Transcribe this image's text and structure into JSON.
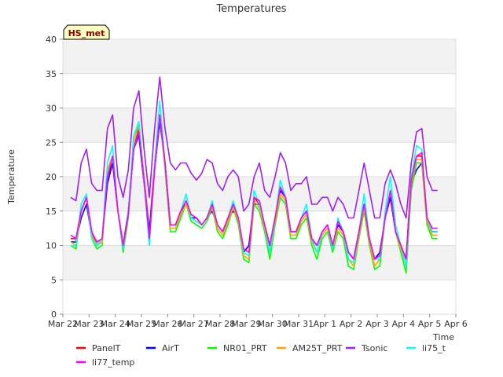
{
  "chart_data": {
    "type": "line",
    "title": "Temperatures",
    "xlabel": "Time",
    "ylabel": "Temperature",
    "badge": "HS_met",
    "ylim": [
      0,
      40
    ],
    "xlim": [
      0,
      15
    ],
    "yticks": [
      0,
      5,
      10,
      15,
      20,
      25,
      30,
      35,
      40
    ],
    "xtick_labels": [
      "Mar 22",
      "Mar 23",
      "Mar 24",
      "Mar 25",
      "Mar 26",
      "Mar 27",
      "Mar 28",
      "Mar 29",
      "Mar 30",
      "Mar 31",
      "Apr 1",
      "Apr 2",
      "Apr 3",
      "Apr 4",
      "Apr 5",
      "Apr 6"
    ],
    "grid": true,
    "legend_position": "bottom",
    "x_units": "days since Mar 22 00:00",
    "series": [
      {
        "name": "PanelT",
        "color": "#ff0000",
        "x": [
          0.3,
          0.5,
          0.7,
          0.9,
          1.1,
          1.3,
          1.5,
          1.7,
          1.9,
          2.1,
          2.3,
          2.5,
          2.7,
          2.9,
          3.1,
          3.3,
          3.5,
          3.7,
          3.9,
          4.1,
          4.3,
          4.5,
          4.7,
          4.9,
          5.1,
          5.3,
          5.5,
          5.7,
          5.9,
          6.1,
          6.3,
          6.5,
          6.7,
          6.9,
          7.1,
          7.3,
          7.5,
          7.7,
          7.9,
          8.1,
          8.3,
          8.5,
          8.7,
          8.9,
          9.1,
          9.3,
          9.5,
          9.7,
          9.9,
          10.1,
          10.3,
          10.5,
          10.7,
          10.9,
          11.1,
          11.3,
          11.5,
          11.7,
          11.9,
          12.1,
          12.3,
          12.5,
          12.7,
          12.9,
          13.1,
          13.3,
          13.5,
          13.7,
          13.9,
          14.1,
          14.3
        ],
        "y": [
          11,
          11,
          15,
          17,
          12,
          10,
          11,
          20,
          22,
          15,
          10,
          15,
          24,
          27,
          20,
          12,
          22,
          29,
          22,
          13,
          13,
          15,
          16,
          14,
          14,
          13,
          14,
          16,
          13,
          12,
          14,
          16,
          14,
          9,
          10,
          17,
          16,
          13,
          10,
          14,
          18,
          17,
          12,
          12,
          14,
          15,
          11,
          10,
          12,
          13,
          10,
          13,
          12,
          9,
          8,
          12,
          16,
          11,
          8,
          9,
          14,
          17,
          12,
          10,
          8,
          20,
          23,
          23,
          14,
          12,
          12
        ]
      },
      {
        "name": "AirT",
        "color": "#0000ff",
        "x": [
          0.3,
          0.5,
          0.7,
          0.9,
          1.1,
          1.3,
          1.5,
          1.7,
          1.9,
          2.1,
          2.3,
          2.5,
          2.7,
          2.9,
          3.1,
          3.3,
          3.5,
          3.7,
          3.9,
          4.1,
          4.3,
          4.5,
          4.7,
          4.9,
          5.1,
          5.3,
          5.5,
          5.7,
          5.9,
          6.1,
          6.3,
          6.5,
          6.7,
          6.9,
          7.1,
          7.3,
          7.5,
          7.7,
          7.9,
          8.1,
          8.3,
          8.5,
          8.7,
          8.9,
          9.1,
          9.3,
          9.5,
          9.7,
          9.9,
          10.1,
          10.3,
          10.5,
          10.7,
          10.9,
          11.1,
          11.3,
          11.5,
          11.7,
          11.9,
          12.1,
          12.3,
          12.5,
          12.7,
          12.9,
          13.1,
          13.3,
          13.5,
          13.7,
          13.9,
          14.1,
          14.3
        ],
        "y": [
          10.5,
          10.5,
          14,
          16,
          11.5,
          10,
          11,
          19,
          22,
          15,
          10,
          15,
          24,
          26,
          19,
          12,
          21,
          28,
          22,
          13,
          13,
          15,
          16,
          14,
          14,
          13,
          14,
          15,
          13,
          12,
          14,
          15,
          14,
          9,
          10,
          16,
          16,
          13,
          10,
          14,
          18,
          17,
          12,
          12,
          14,
          15,
          11,
          10,
          12,
          13,
          10,
          13,
          12,
          9,
          8,
          12,
          16,
          11,
          8,
          9,
          14,
          17,
          12,
          10,
          8,
          19,
          21,
          22,
          14,
          12,
          12
        ]
      },
      {
        "name": "NR01_PRT",
        "color": "#00ff00",
        "x": [
          0.3,
          0.5,
          0.7,
          0.9,
          1.1,
          1.3,
          1.5,
          1.7,
          1.9,
          2.1,
          2.3,
          2.5,
          2.7,
          2.9,
          3.1,
          3.3,
          3.5,
          3.7,
          3.9,
          4.1,
          4.3,
          4.5,
          4.7,
          4.9,
          5.1,
          5.3,
          5.5,
          5.7,
          5.9,
          6.1,
          6.3,
          6.5,
          6.7,
          6.9,
          7.1,
          7.3,
          7.5,
          7.7,
          7.9,
          8.1,
          8.3,
          8.5,
          8.7,
          8.9,
          9.1,
          9.3,
          9.5,
          9.7,
          9.9,
          10.1,
          10.3,
          10.5,
          10.7,
          10.9,
          11.1,
          11.3,
          11.5,
          11.7,
          11.9,
          12.1,
          12.3,
          12.5,
          12.7,
          12.9,
          13.1,
          13.3,
          13.5,
          13.7,
          13.9,
          14.1,
          14.3
        ],
        "y": [
          10,
          9.5,
          15,
          17,
          11,
          9.5,
          10,
          21,
          23,
          15,
          9,
          14,
          25,
          28,
          20,
          10,
          21,
          29,
          21,
          12,
          12,
          14,
          16,
          13.5,
          13,
          12.5,
          13.5,
          15.5,
          12,
          11,
          13,
          15.5,
          13,
          8,
          7.5,
          16,
          15,
          12,
          8,
          13,
          17,
          16,
          11,
          11,
          13,
          14,
          10,
          8,
          11,
          12,
          9,
          12,
          11,
          7,
          6.5,
          11,
          15,
          10,
          6.5,
          7,
          14,
          18,
          12,
          9,
          6,
          18,
          22,
          22,
          13,
          11,
          11
        ]
      },
      {
        "name": "AM25T_PRT",
        "color": "#ffa500",
        "x": [
          0.3,
          0.5,
          0.7,
          0.9,
          1.1,
          1.3,
          1.5,
          1.7,
          1.9,
          2.1,
          2.3,
          2.5,
          2.7,
          2.9,
          3.1,
          3.3,
          3.5,
          3.7,
          3.9,
          4.1,
          4.3,
          4.5,
          4.7,
          4.9,
          5.1,
          5.3,
          5.5,
          5.7,
          5.9,
          6.1,
          6.3,
          6.5,
          6.7,
          6.9,
          7.1,
          7.3,
          7.5,
          7.7,
          7.9,
          8.1,
          8.3,
          8.5,
          8.7,
          8.9,
          9.1,
          9.3,
          9.5,
          9.7,
          9.9,
          10.1,
          10.3,
          10.5,
          10.7,
          10.9,
          11.1,
          11.3,
          11.5,
          11.7,
          11.9,
          12.1,
          12.3,
          12.5,
          12.7,
          12.9,
          13.1,
          13.3,
          13.5,
          13.7,
          13.9,
          14.1,
          14.3
        ],
        "y": [
          10.5,
          10,
          15,
          17,
          11.5,
          10,
          10.5,
          21,
          23,
          15,
          9.5,
          14.5,
          25,
          27.5,
          20,
          10.5,
          21,
          29,
          21.5,
          12.5,
          12.5,
          14.5,
          16,
          14,
          13.5,
          13,
          14,
          15.5,
          12.5,
          11.5,
          13.5,
          15.5,
          13.5,
          8.5,
          8,
          16.5,
          15.5,
          12.5,
          9,
          13.5,
          17.5,
          16.5,
          11.5,
          11.5,
          13.5,
          14.5,
          10.5,
          9,
          11.5,
          12.5,
          9.5,
          12.5,
          11.5,
          8,
          7,
          11.5,
          15.5,
          10.5,
          7,
          8,
          14,
          18,
          12,
          9.5,
          7,
          19,
          22.5,
          22.5,
          13.5,
          11.5,
          11.5
        ]
      },
      {
        "name": "Tsonic",
        "color": "#a020f0",
        "x": [
          0.3,
          0.5,
          0.7,
          0.9,
          1.1,
          1.3,
          1.5,
          1.7,
          1.9,
          2.1,
          2.3,
          2.5,
          2.7,
          2.9,
          3.1,
          3.3,
          3.5,
          3.7,
          3.9,
          4.1,
          4.3,
          4.5,
          4.7,
          4.9,
          5.1,
          5.3,
          5.5,
          5.7,
          5.9,
          6.1,
          6.3,
          6.5,
          6.7,
          6.9,
          7.1,
          7.3,
          7.5,
          7.7,
          7.9,
          8.1,
          8.3,
          8.5,
          8.7,
          8.9,
          9.1,
          9.3,
          9.5,
          9.7,
          9.9,
          10.1,
          10.3,
          10.5,
          10.7,
          10.9,
          11.1,
          11.3,
          11.5,
          11.7,
          11.9,
          12.1,
          12.3,
          12.5,
          12.7,
          12.9,
          13.1,
          13.3,
          13.5,
          13.7,
          13.9,
          14.1,
          14.3
        ],
        "y": [
          17,
          16.5,
          22,
          24,
          19,
          18,
          18,
          27,
          29,
          20,
          17,
          21,
          30,
          32.5,
          24,
          17,
          27,
          34.5,
          27,
          22,
          21,
          22,
          22,
          20.5,
          19.5,
          20.5,
          22.5,
          22,
          19,
          18,
          20,
          21,
          20,
          15,
          16,
          20,
          22,
          18,
          17,
          20,
          23.5,
          22,
          18,
          19,
          19,
          20,
          16,
          16,
          17,
          17,
          15,
          17,
          16,
          14,
          14,
          18,
          22,
          18,
          14,
          14,
          19,
          21,
          19,
          16,
          14,
          22,
          26.5,
          27,
          20,
          18,
          18
        ]
      },
      {
        "name": "li75_t",
        "color": "#00ffff",
        "x": [
          0.3,
          0.5,
          0.7,
          0.9,
          1.1,
          1.3,
          1.5,
          1.7,
          1.9,
          2.1,
          2.3,
          2.5,
          2.7,
          2.9,
          3.1,
          3.3,
          3.5,
          3.7,
          3.9,
          4.1,
          4.3,
          4.5,
          4.7,
          4.9,
          5.1,
          5.3,
          5.5,
          5.7,
          5.9,
          6.1,
          6.3,
          6.5,
          6.7,
          6.9,
          7.1,
          7.3,
          7.5,
          7.7,
          7.9,
          8.1,
          8.3,
          8.5,
          8.7,
          8.9,
          9.1,
          9.3,
          9.5,
          9.7,
          9.9,
          10.1,
          10.3,
          10.5,
          10.7,
          10.9,
          11.1,
          11.3,
          11.5,
          11.7,
          11.9,
          12.1,
          12.3,
          12.5,
          12.7,
          12.9,
          13.1,
          13.3,
          13.5,
          13.7,
          13.9,
          14.1,
          14.3
        ],
        "y": [
          10,
          10,
          16,
          17.5,
          11,
          10,
          11,
          22,
          24.5,
          15,
          9.5,
          15,
          26,
          28,
          19,
          10,
          22,
          31,
          22,
          13,
          13,
          15,
          17.5,
          14,
          13.5,
          13,
          14,
          16.5,
          13,
          12,
          14,
          16.5,
          14,
          9,
          8.5,
          18,
          16,
          13,
          9,
          14,
          19.5,
          17,
          12,
          12,
          14,
          16,
          11,
          9,
          12,
          13,
          9.5,
          14,
          12,
          8,
          7.5,
          12,
          17.5,
          11,
          8,
          8,
          15,
          20,
          13,
          10,
          7,
          20,
          24.5,
          24,
          14,
          12,
          12
        ]
      },
      {
        "name": "li77_temp",
        "color": "#ff00ff",
        "x": [
          0.3,
          0.5,
          0.7,
          0.9,
          1.1,
          1.3,
          1.5,
          1.7,
          1.9,
          2.1,
          2.3,
          2.5,
          2.7,
          2.9,
          3.1,
          3.3,
          3.5,
          3.7,
          3.9,
          4.1,
          4.3,
          4.5,
          4.7,
          4.9,
          5.1,
          5.3,
          5.5,
          5.7,
          5.9,
          6.1,
          6.3,
          6.5,
          6.7,
          6.9,
          7.1,
          7.3,
          7.5,
          7.7,
          7.9,
          8.1,
          8.3,
          8.5,
          8.7,
          8.9,
          9.1,
          9.3,
          9.5,
          9.7,
          9.9,
          10.1,
          10.3,
          10.5,
          10.7,
          10.9,
          11.1,
          11.3,
          11.5,
          11.7,
          11.9,
          12.1,
          12.3,
          12.5,
          12.7,
          12.9,
          13.1,
          13.3,
          13.5,
          13.7,
          13.9,
          14.1,
          14.3
        ],
        "y": [
          11.5,
          11,
          15,
          17,
          12,
          10.5,
          11,
          20,
          23,
          15,
          10,
          14.5,
          24,
          26.5,
          19.5,
          11,
          21,
          29,
          22,
          13,
          13,
          15,
          16.5,
          14.5,
          14,
          13,
          14,
          16,
          13,
          12,
          14,
          16,
          14,
          9.5,
          9,
          17,
          16.5,
          13,
          10,
          14,
          18.5,
          17,
          12,
          12,
          14,
          15,
          11,
          10,
          12,
          13,
          10,
          13.5,
          12,
          9,
          8,
          12,
          16,
          11,
          8,
          8.5,
          14,
          18,
          12,
          10,
          8,
          19.5,
          23,
          23.5,
          14,
          12.5,
          12.5
        ]
      }
    ]
  }
}
